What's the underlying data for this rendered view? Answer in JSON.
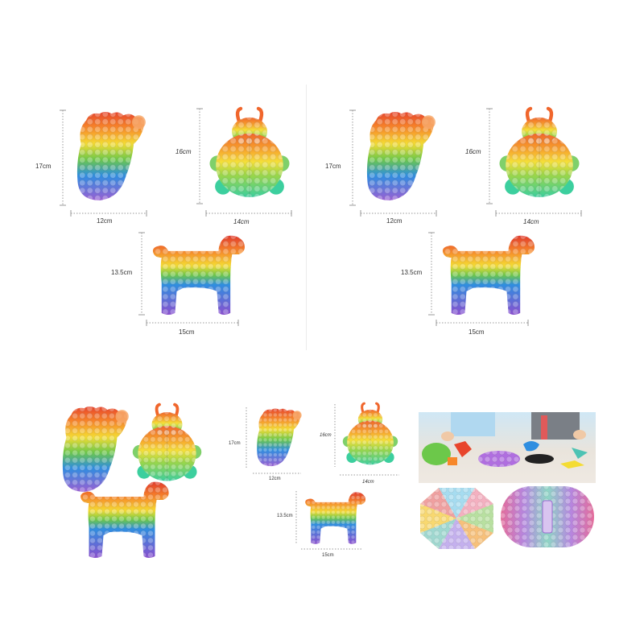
{
  "colors": {
    "red": "#e8452c",
    "orange": "#f7882a",
    "yellow": "#f4dc33",
    "green": "#6cc84a",
    "blue": "#2f8ee0",
    "purple": "#9a5fd4",
    "dim_line": "#999999",
    "background": "#ffffff"
  },
  "items": [
    "foot-shape",
    "ladybug-shape",
    "dog-shape"
  ],
  "dims": {
    "foot_height": "17cm",
    "foot_width": "12cm",
    "ladybug_height": "16cm",
    "ladybug_width": "14cm",
    "dog_height": "13.5cm",
    "dog_width": "15cm"
  },
  "photo_scene": {
    "colors": [
      "#cfe7f5",
      "#e9e4dc",
      "#f0c27a",
      "#b0d8f0"
    ]
  }
}
